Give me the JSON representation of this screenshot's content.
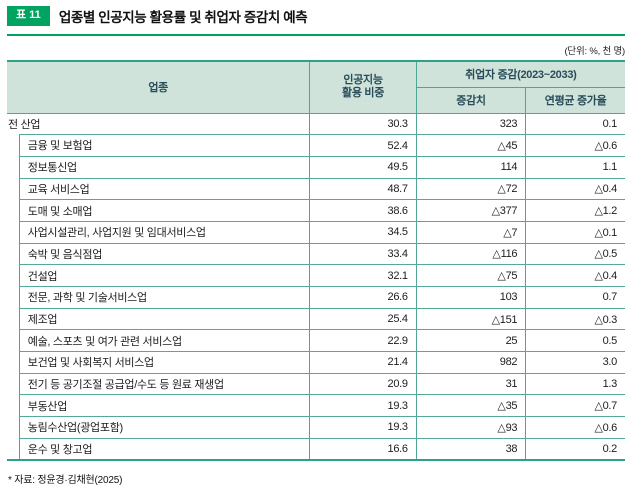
{
  "page": {
    "badge": "표 11",
    "title": "업종별 인공지능 활용률 및 취업자 증감치 예측",
    "unit_note": "(단위: %, 천 명)",
    "footnote": "* 자료: 정윤경·김채현(2025)"
  },
  "colors": {
    "accent_green": "#00A35F",
    "table_border_teal": "#2FA089",
    "grid_line_teal": "#56A996",
    "header_bg": "#CFE3DB",
    "header_text": "#2A4C58"
  },
  "table": {
    "headers": {
      "industry": "업종",
      "ai_share_line1": "인공지능",
      "ai_share_line2": "활용 비중",
      "employment_group": "취업자 증감(2023~2033)",
      "change": "증감치",
      "annual_growth": "연평균 증가율"
    },
    "rows": [
      {
        "label": "전 산업",
        "ai_share": "30.3",
        "change": "323",
        "growth": "0.1"
      },
      {
        "label": "금융 및 보험업",
        "ai_share": "52.4",
        "change": "△45",
        "growth": "△0.6"
      },
      {
        "label": "정보통신업",
        "ai_share": "49.5",
        "change": "114",
        "growth": "1.1"
      },
      {
        "label": "교육 서비스업",
        "ai_share": "48.7",
        "change": "△72",
        "growth": "△0.4"
      },
      {
        "label": "도매 및 소매업",
        "ai_share": "38.6",
        "change": "△377",
        "growth": "△1.2"
      },
      {
        "label": "사업시설관리, 사업지원 및 임대서비스업",
        "ai_share": "34.5",
        "change": "△7",
        "growth": "△0.1"
      },
      {
        "label": "숙박 및 음식점업",
        "ai_share": "33.4",
        "change": "△116",
        "growth": "△0.5"
      },
      {
        "label": "건설업",
        "ai_share": "32.1",
        "change": "△75",
        "growth": "△0.4"
      },
      {
        "label": "전문, 과학 및 기술서비스업",
        "ai_share": "26.6",
        "change": "103",
        "growth": "0.7"
      },
      {
        "label": "제조업",
        "ai_share": "25.4",
        "change": "△151",
        "growth": "△0.3"
      },
      {
        "label": "예술, 스포츠 및 여가 관련 서비스업",
        "ai_share": "22.9",
        "change": "25",
        "growth": "0.5"
      },
      {
        "label": "보건업 및 사회복지 서비스업",
        "ai_share": "21.4",
        "change": "982",
        "growth": "3.0"
      },
      {
        "label": "전기 등 공기조절 공급업/수도 등 원료 재생업",
        "ai_share": "20.9",
        "change": "31",
        "growth": "1.3"
      },
      {
        "label": "부동산업",
        "ai_share": "19.3",
        "change": "△35",
        "growth": "△0.7"
      },
      {
        "label": "농림수산업(광업포함)",
        "ai_share": "19.3",
        "change": "△93",
        "growth": "△0.6"
      },
      {
        "label": "운수 및 창고업",
        "ai_share": "16.6",
        "change": "38",
        "growth": "0.2"
      }
    ]
  }
}
